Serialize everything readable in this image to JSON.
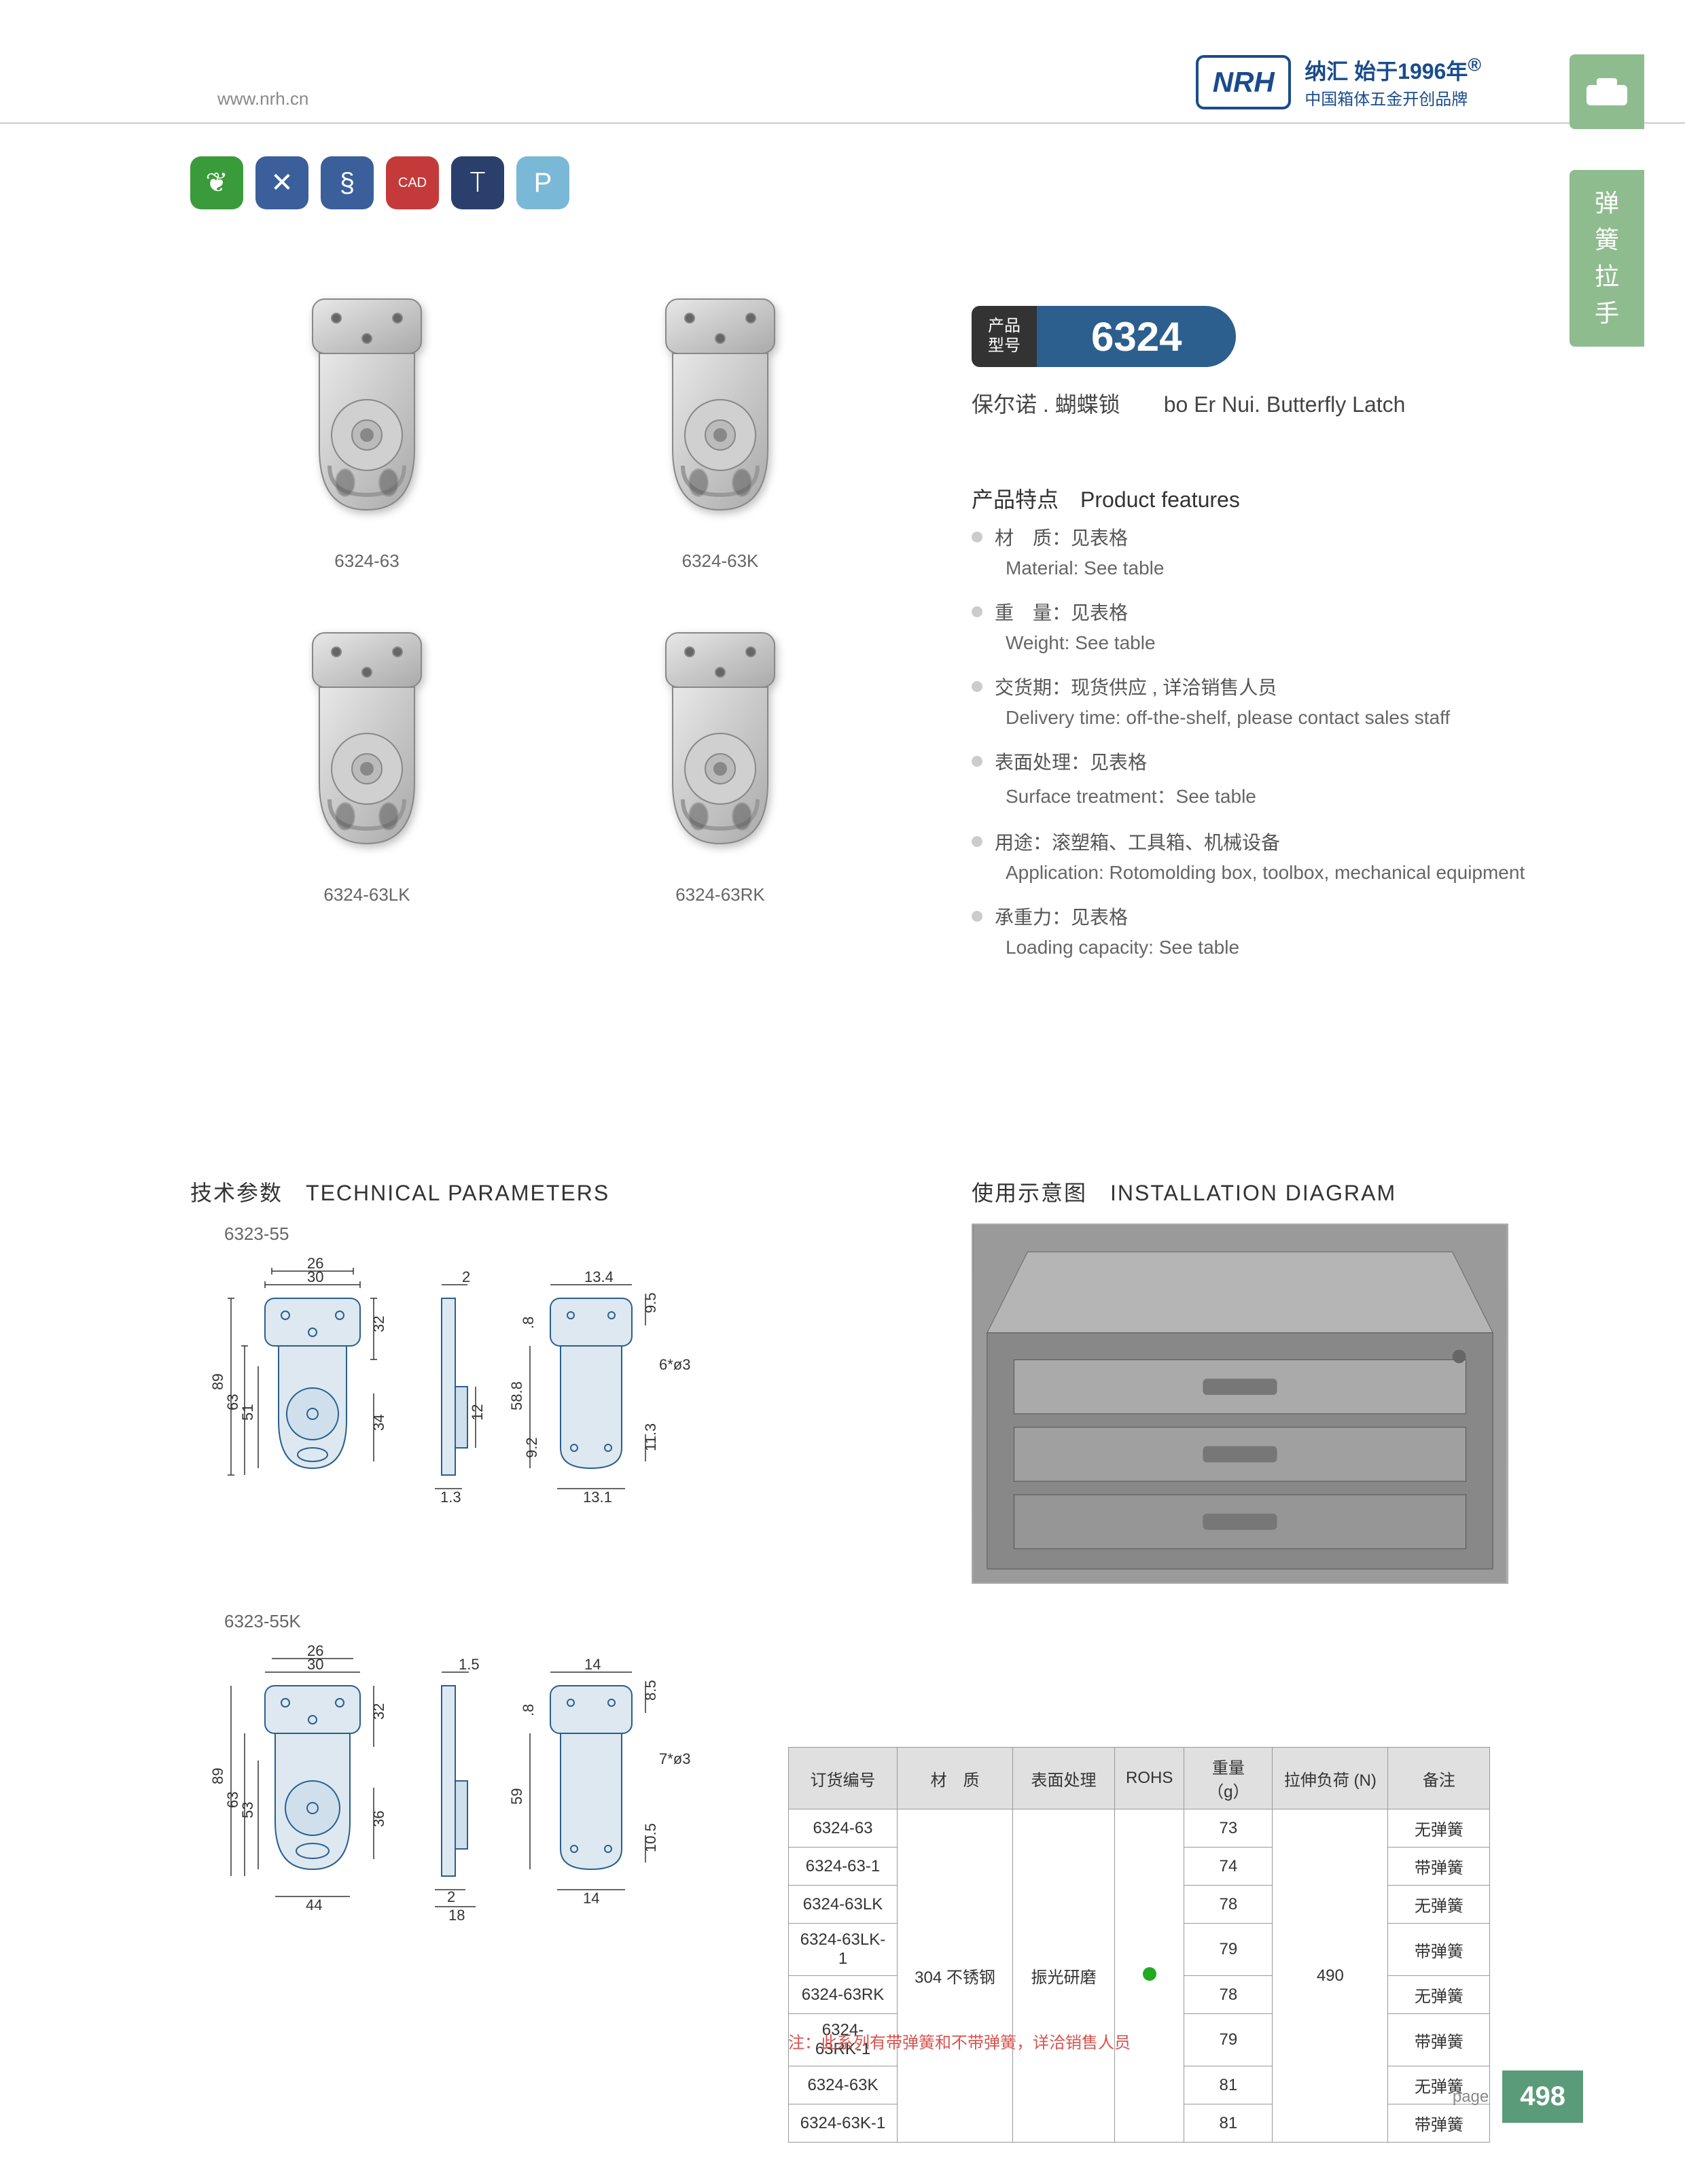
{
  "header": {
    "url": "www.nrh.cn",
    "brand": "NRH",
    "tagline1": "纳汇 始于1996年",
    "tagline2": "中国箱体五金开创品牌",
    "reg": "®"
  },
  "sidetab": {
    "c1": "弹",
    "c2": "簧",
    "c3": "拉",
    "c4": "手"
  },
  "icons": [
    {
      "bg": "#3a9b3a",
      "glyph": "❦"
    },
    {
      "bg": "#3a5f9b",
      "glyph": "✕"
    },
    {
      "bg": "#3a5f9b",
      "glyph": "§"
    },
    {
      "bg": "#c43a3a",
      "glyph": "CAD",
      "fs": "20px"
    },
    {
      "bg": "#2a3f6b",
      "glyph": "⟙"
    },
    {
      "bg": "#7ab8d8",
      "glyph": "P"
    }
  ],
  "products": [
    {
      "label": "6324-63"
    },
    {
      "label": "6324-63K"
    },
    {
      "label": "6324-63LK"
    },
    {
      "label": "6324-63RK"
    }
  ],
  "model": {
    "label1": "产品",
    "label2": "型号",
    "number": "6324"
  },
  "productName": {
    "cn": "保尔诺 . 蝴蝶锁",
    "sep": "　　",
    "en": "bo Er Nui. Butterfly Latch"
  },
  "featuresTitle": {
    "cn": "产品特点",
    "en": "Product features"
  },
  "features": [
    {
      "cn": "材　质：见表格",
      "en": "Material: See table"
    },
    {
      "cn": "重　量：见表格",
      "en": "Weight: See table"
    },
    {
      "cn": "交货期：现货供应 , 详洽销售人员",
      "en": "Delivery time: off-the-shelf, please contact sales staff"
    },
    {
      "cn": "表面处理：见表格",
      "en": "Surface treatment：See table"
    },
    {
      "cn": "用途：滚塑箱、工具箱、机械设备",
      "en": "Application: Rotomolding box, toolbox, mechanical equipment"
    },
    {
      "cn": "承重力：见表格",
      "en": "Loading capacity: See table"
    }
  ],
  "sections": {
    "tech": {
      "cn": "技术参数",
      "en": "TECHNICAL PARAMETERS"
    },
    "install": {
      "cn": "使用示意图",
      "en": "INSTALLATION DIAGRAM"
    }
  },
  "diagrams": {
    "d1": "6323-55",
    "d2": "6323-55K"
  },
  "dims1": {
    "w1": "30",
    "w2": "26",
    "h1": "89",
    "h2": "63",
    "h3": "51",
    "h4": "32",
    "h5": "34",
    "t1": "2",
    "t2": "1.3",
    "t3": "12",
    "w3": "13.4",
    "h6": "58.8",
    "h7": "9.5",
    "h8": ".8",
    "h9": "9.2",
    "h10": "11.3",
    "w4": "13.1",
    "hole": "6*ø3"
  },
  "dims2": {
    "w1": "30",
    "w2": "26",
    "h1": "89",
    "h2": "63",
    "h3": "53",
    "h4": "32",
    "h5": "36",
    "w5": "44",
    "t1": "1.5",
    "t2": "2",
    "t3": "18",
    "w3": "14",
    "h6": "59",
    "h7": "8.5",
    "h8": ".8",
    "h10": "10.5",
    "w4": "14",
    "hole": "7*ø3"
  },
  "table": {
    "headers": [
      "订货编号",
      "材　质",
      "表面处理",
      "ROHS",
      "重量（g）",
      "拉伸负荷 (N)",
      "备注"
    ],
    "material": "304 不锈钢",
    "surface": "振光研磨",
    "load": "490",
    "rows": [
      {
        "order": "6324-63",
        "weight": "73",
        "note": "无弹簧"
      },
      {
        "order": "6324-63-1",
        "weight": "74",
        "note": "带弹簧"
      },
      {
        "order": "6324-63LK",
        "weight": "78",
        "note": "无弹簧"
      },
      {
        "order": "6324-63LK-1",
        "weight": "79",
        "note": "带弹簧"
      },
      {
        "order": "6324-63RK",
        "weight": "78",
        "note": "无弹簧"
      },
      {
        "order": "6324-63RK-1",
        "weight": "79",
        "note": "带弹簧"
      },
      {
        "order": "6324-63K",
        "weight": "81",
        "note": "无弹簧"
      },
      {
        "order": "6324-63K-1",
        "weight": "81",
        "note": "带弹簧"
      }
    ],
    "note": "注：此系列有带弹簧和不带弹簧，详洽销售人员"
  },
  "footer": {
    "label": "page",
    "num": "498"
  }
}
